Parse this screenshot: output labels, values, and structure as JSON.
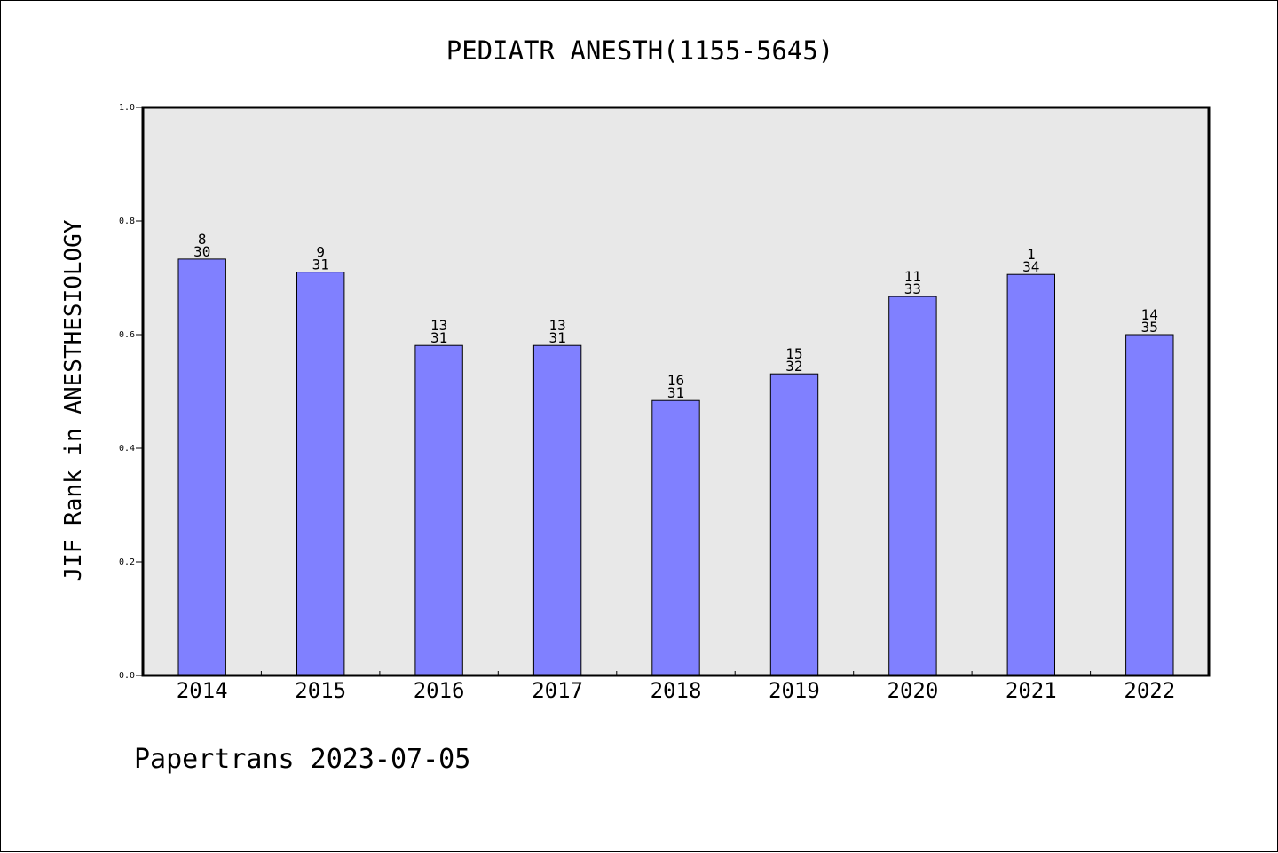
{
  "chart_data": {
    "type": "bar",
    "title": "PEDIATR ANESTH(1155-5645)",
    "xlabel": "",
    "ylabel": "JIF Rank in ANESTHESIOLOGY",
    "ylim": [
      0,
      1.0
    ],
    "yticks": [
      "0.0",
      "0.2",
      "0.4",
      "0.6",
      "0.8",
      "1.0"
    ],
    "categories": [
      "2014",
      "2015",
      "2016",
      "2017",
      "2018",
      "2019",
      "2020",
      "2021",
      "2022"
    ],
    "values": [
      0.733,
      0.71,
      0.581,
      0.581,
      0.484,
      0.531,
      0.667,
      0.706,
      0.6
    ],
    "rank": [
      "8",
      "9",
      "13",
      "13",
      "16",
      "15",
      "11",
      "1",
      "14"
    ],
    "total": [
      "30",
      "31",
      "31",
      "31",
      "31",
      "32",
      "33",
      "34",
      "35"
    ],
    "bar_color": "#8080ff",
    "plot_bg": "#e8e8e8",
    "grid": false,
    "legend": "none"
  },
  "footer": {
    "watermark": "Papertrans 2023-07-05"
  }
}
